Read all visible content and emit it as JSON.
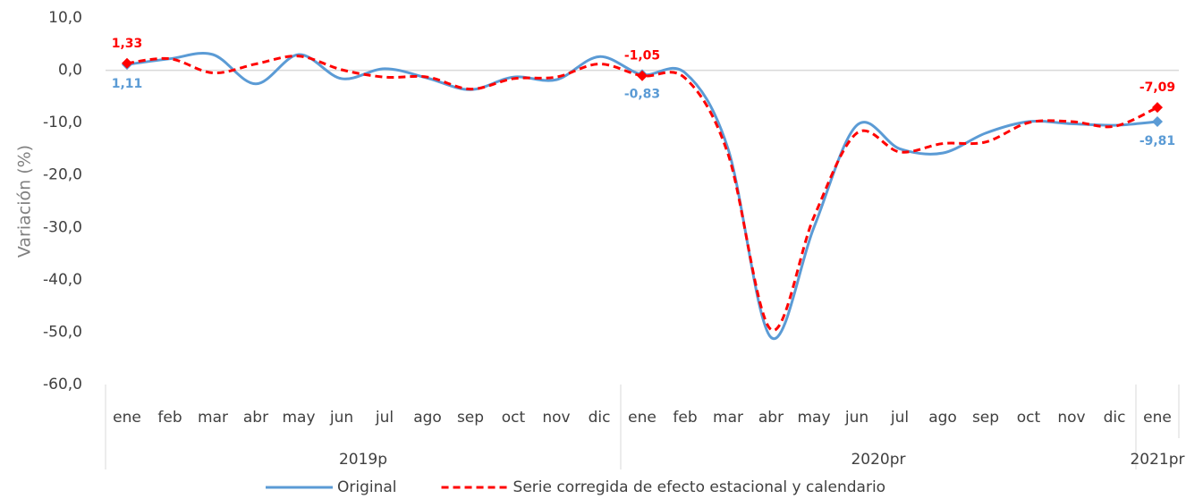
{
  "chart_data": {
    "type": "line",
    "y_label": "Variación (%)",
    "categories": [
      "ene",
      "feb",
      "mar",
      "abr",
      "may",
      "jun",
      "jul",
      "ago",
      "sep",
      "oct",
      "nov",
      "dic",
      "ene",
      "feb",
      "mar",
      "abr",
      "may",
      "jun",
      "jul",
      "ago",
      "sep",
      "oct",
      "nov",
      "dic",
      "ene"
    ],
    "groups": [
      {
        "name": "2019p",
        "count": 12
      },
      {
        "name": "2020pr",
        "count": 12
      },
      {
        "name": "2021pr",
        "count": 1
      }
    ],
    "series": [
      {
        "name": "Original",
        "color": "#5b9bd5",
        "dash": false,
        "values": [
          1.11,
          2.2,
          3.0,
          -2.6,
          3.0,
          -1.6,
          0.3,
          -1.5,
          -3.7,
          -1.3,
          -1.8,
          2.6,
          -0.83,
          -0.5,
          -15,
          -51,
          -30,
          -10.5,
          -15,
          -15.8,
          -12,
          -9.8,
          -10.2,
          -10.5,
          -9.81
        ],
        "value_labels": [
          "1,11",
          null,
          null,
          null,
          null,
          null,
          null,
          null,
          null,
          null,
          null,
          null,
          "-0,83",
          null,
          null,
          null,
          null,
          null,
          null,
          null,
          null,
          null,
          null,
          null,
          "-9,81"
        ]
      },
      {
        "name": "Serie corregida de efecto estacional y calendario",
        "color": "#ff0000",
        "dash": true,
        "values": [
          1.33,
          2.2,
          -0.5,
          1.2,
          2.7,
          0.1,
          -1.3,
          -1.3,
          -3.6,
          -1.6,
          -1.3,
          1.2,
          -1.05,
          -1.5,
          -16,
          -49.5,
          -28,
          -12,
          -15.6,
          -14,
          -13.7,
          -10,
          -9.8,
          -10.7,
          -7.09
        ],
        "value_labels": [
          "1,33",
          null,
          null,
          null,
          null,
          null,
          null,
          null,
          null,
          null,
          null,
          null,
          "-1,05",
          null,
          null,
          null,
          null,
          null,
          null,
          null,
          null,
          null,
          null,
          null,
          "-7,09"
        ]
      }
    ],
    "ylim": [
      -60,
      10
    ],
    "yticks": [
      {
        "value": -60,
        "label": "-60,0"
      },
      {
        "value": -50,
        "label": "-50,0"
      },
      {
        "value": -40,
        "label": "-40,0"
      },
      {
        "value": -30,
        "label": "-30,0"
      },
      {
        "value": -20,
        "label": "-20,0"
      },
      {
        "value": -10,
        "label": "-10,0"
      },
      {
        "value": 0,
        "label": "0,0"
      },
      {
        "value": 10,
        "label": "10,0"
      }
    ],
    "legend": "bottom"
  }
}
